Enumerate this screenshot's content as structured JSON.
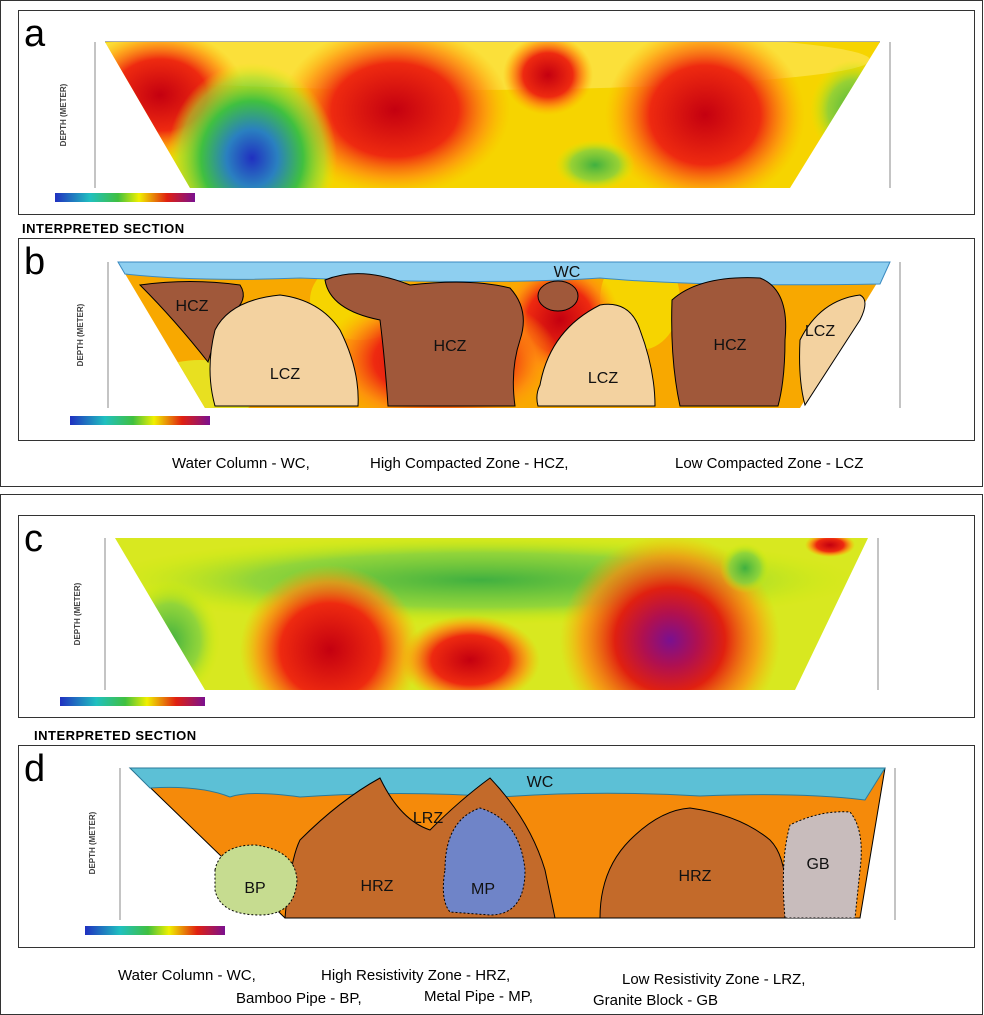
{
  "panels": [
    {
      "letter": "a",
      "axis_label": "DEPTH (METER)"
    },
    {
      "letter": "b",
      "axis_label": "DEPTH (METER)",
      "zones": [
        "WC",
        "HCZ",
        "LCZ",
        "HCZ",
        "LCZ",
        "HCZ",
        "LCZ"
      ]
    },
    {
      "letter": "c",
      "axis_label": "DEPTH (METER)"
    },
    {
      "letter": "d",
      "axis_label": "DEPTH (METER)",
      "zones": [
        "WC",
        "LRZ",
        "BP",
        "HRZ",
        "MP",
        "HRZ",
        "GB"
      ]
    }
  ],
  "section_headings": [
    "INTERPRETED SECTION",
    "INTERPRETED SECTION"
  ],
  "captions": {
    "top": [
      "Water Column - WC,",
      "High Compacted Zone - HCZ,",
      "Low Compacted Zone - LCZ"
    ],
    "bottom_line1": [
      "Water Column - WC,",
      "High Resistivity Zone - HRZ,",
      "Low Resistivity Zone - LRZ,"
    ],
    "bottom_line2": [
      "Bamboo Pipe - BP,",
      "Metal Pipe - MP,",
      "Granite Block - GB"
    ]
  }
}
